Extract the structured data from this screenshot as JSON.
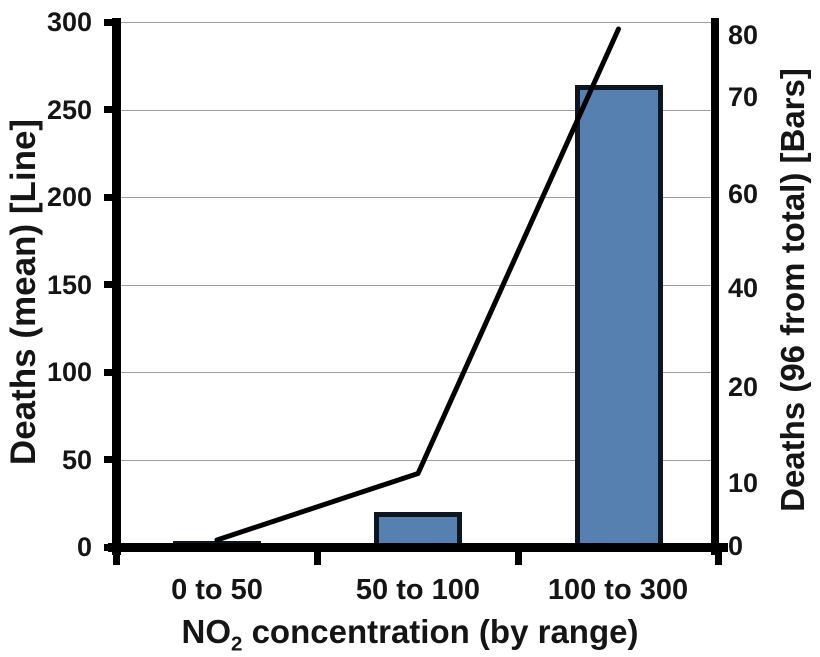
{
  "colors": {
    "background": "#ffffff",
    "text": "#151515",
    "axis": "#000000",
    "grid": "#9e9e9e",
    "bar_fill": "#5580b0",
    "bar_border": "#0d1520",
    "line": "#000000"
  },
  "axes": {
    "left": {
      "title": "Deaths (mean) [Line]",
      "tick_labels": [
        "300",
        "250",
        "200",
        "150",
        "100",
        "50",
        "0"
      ]
    },
    "right": {
      "title": "Deaths (96 from total) [Bars]",
      "tick_labels": [
        "80",
        "70",
        "60",
        "40",
        "20",
        "10",
        "0"
      ]
    },
    "x": {
      "title_prefix": "NO",
      "title_sub": "2",
      "title_rest": " concentration (by range)",
      "categories": [
        "0 to 50",
        "50 to 100",
        "100 to 300"
      ]
    }
  },
  "chart_data": {
    "type": "combo",
    "categories": [
      "0 to 50",
      "50 to 100",
      "100 to 300"
    ],
    "series": [
      {
        "name": "Deaths (96 from total)",
        "type": "bar",
        "axis": "right",
        "values": [
          1,
          6,
          71
        ]
      },
      {
        "name": "Deaths (mean)",
        "type": "line",
        "axis": "left",
        "values": [
          4,
          42,
          296
        ]
      }
    ],
    "title": "",
    "xlabel": "NO2 concentration (by range)",
    "ylabel_left": "Deaths (mean) [Line]",
    "ylabel_right": "Deaths (96 from total) [Bars]",
    "left_axis": {
      "min": 0,
      "max": 300,
      "ticks": [
        0,
        50,
        100,
        150,
        200,
        250,
        300
      ]
    },
    "right_axis": {
      "min": 0,
      "max": 80,
      "ticks": [
        0,
        10,
        20,
        40,
        60,
        70,
        80
      ],
      "note": "tick labels printed with uneven spacing on the axis"
    },
    "grid": true,
    "legend": false,
    "bar_color": "#5580b0",
    "line_color": "#000000"
  }
}
